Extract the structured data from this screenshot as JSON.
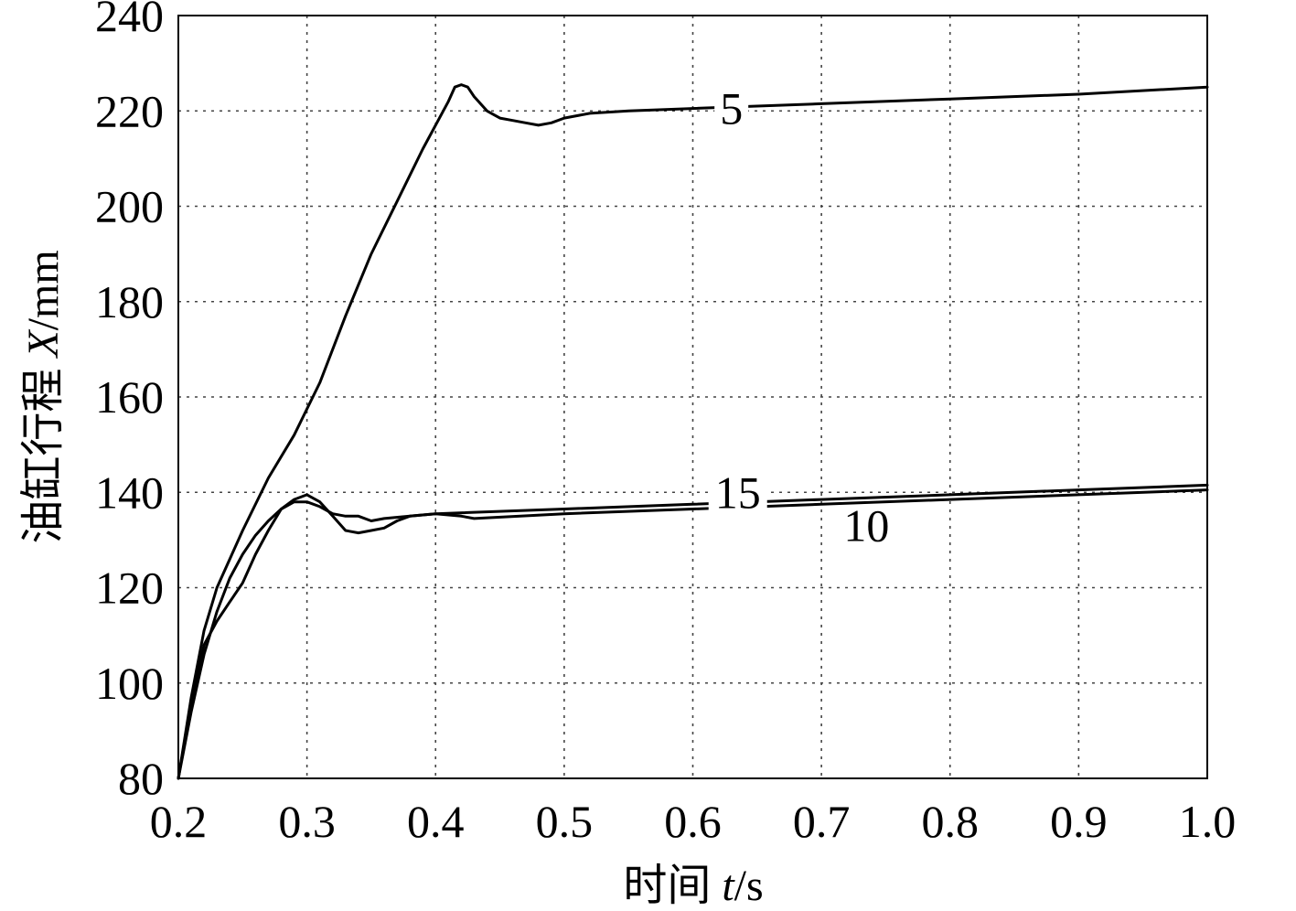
{
  "chart_data": {
    "type": "line",
    "xlabel": "时间 t/s",
    "xlabel_parts": {
      "prefix": "时间 ",
      "var": "t",
      "suffix": "/s"
    },
    "ylabel": "油缸行程 X/mm",
    "ylabel_parts": {
      "prefix": "油缸行程 ",
      "var": "X",
      "suffix": "/mm"
    },
    "xlim": [
      0.2,
      1.0
    ],
    "ylim": [
      80,
      240
    ],
    "xticks": [
      "0.2",
      "0.3",
      "0.4",
      "0.5",
      "0.6",
      "0.7",
      "0.8",
      "0.9",
      "1.0"
    ],
    "yticks": [
      "80",
      "100",
      "120",
      "140",
      "160",
      "180",
      "200",
      "220",
      "240"
    ],
    "grid": true,
    "series": [
      {
        "name": "5",
        "x": [
          0.2,
          0.21,
          0.22,
          0.23,
          0.25,
          0.27,
          0.29,
          0.31,
          0.33,
          0.35,
          0.37,
          0.39,
          0.41,
          0.415,
          0.42,
          0.425,
          0.43,
          0.44,
          0.45,
          0.46,
          0.47,
          0.48,
          0.49,
          0.5,
          0.52,
          0.55,
          0.6,
          0.7,
          0.8,
          0.9,
          1.0
        ],
        "y": [
          80,
          97,
          111,
          120,
          132,
          143,
          152,
          163,
          177,
          190,
          201,
          212,
          222,
          225,
          225.5,
          225,
          223,
          220,
          218.5,
          218,
          217.5,
          217,
          217.5,
          218.5,
          219.5,
          220,
          220.5,
          221.5,
          222.5,
          223.5,
          225
        ]
      },
      {
        "name": "15",
        "x": [
          0.2,
          0.21,
          0.22,
          0.23,
          0.24,
          0.25,
          0.26,
          0.27,
          0.28,
          0.29,
          0.3,
          0.31,
          0.32,
          0.33,
          0.34,
          0.35,
          0.36,
          0.37,
          0.38,
          0.4,
          0.5,
          0.6,
          0.7,
          0.8,
          0.9,
          1.0
        ],
        "y": [
          80,
          94,
          106,
          115,
          122,
          127,
          131,
          134,
          136.5,
          138.5,
          139.5,
          138,
          135,
          132,
          131.5,
          132,
          132.5,
          134,
          135,
          135.5,
          136.5,
          137.5,
          138.5,
          139.5,
          140.5,
          141.5
        ]
      },
      {
        "name": "10",
        "x": [
          0.2,
          0.21,
          0.22,
          0.23,
          0.24,
          0.25,
          0.26,
          0.27,
          0.28,
          0.29,
          0.3,
          0.31,
          0.32,
          0.33,
          0.34,
          0.35,
          0.36,
          0.38,
          0.4,
          0.42,
          0.43,
          0.5,
          0.6,
          0.7,
          0.8,
          0.9,
          1.0
        ],
        "y": [
          80,
          96,
          108,
          113,
          117,
          121,
          127,
          132,
          136.5,
          138,
          138,
          137,
          135.5,
          135,
          135,
          134,
          134.5,
          135,
          135.5,
          135,
          134.5,
          135.5,
          136.5,
          137.5,
          138.5,
          139.5,
          140.5
        ]
      }
    ],
    "annotations": [
      {
        "text": "5",
        "x": 0.63,
        "y": 220.5
      },
      {
        "text": "15",
        "x": 0.635,
        "y": 140
      },
      {
        "text": "10",
        "x": 0.735,
        "y": 133
      }
    ]
  }
}
